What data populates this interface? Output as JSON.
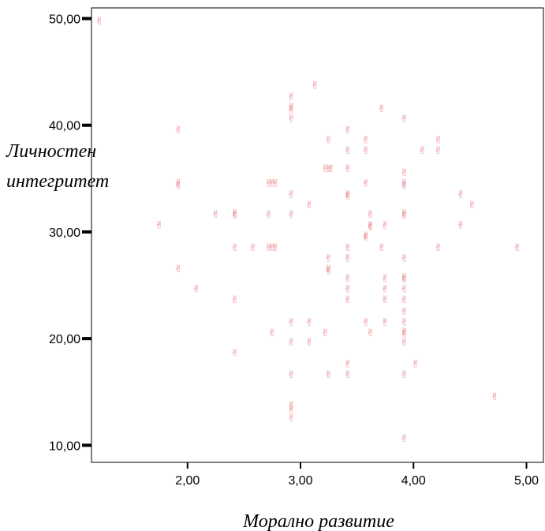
{
  "chart_data": {
    "type": "scatter",
    "title": "",
    "xlabel": "Морално развитие",
    "ylabel_line1": "Личностен",
    "ylabel_line2": "интегритет",
    "xlim": [
      1.15,
      5.15
    ],
    "ylim": [
      8.4,
      51.0
    ],
    "x_ticks": [
      2,
      3,
      4,
      5
    ],
    "x_tick_labels": [
      "2,00",
      "3,00",
      "4,00",
      "5,00"
    ],
    "y_ticks": [
      10,
      20,
      30,
      40,
      50
    ],
    "y_tick_labels": [
      "10,00",
      "20,00",
      "30,00",
      "40,00",
      "50,00"
    ],
    "grid": false,
    "marker_glyph": "✌",
    "marker_color": "#e8737a",
    "points": [
      [
        1.22,
        49.8
      ],
      [
        1.75,
        30.7
      ],
      [
        1.92,
        39.6
      ],
      [
        1.92,
        34.6
      ],
      [
        1.92,
        34.4
      ],
      [
        1.92,
        26.6
      ],
      [
        2.08,
        24.7
      ],
      [
        2.25,
        31.7
      ],
      [
        2.42,
        31.8
      ],
      [
        2.42,
        31.6
      ],
      [
        2.42,
        28.6
      ],
      [
        2.42,
        23.7
      ],
      [
        2.42,
        18.7
      ],
      [
        2.58,
        28.6
      ],
      [
        2.72,
        34.6
      ],
      [
        2.75,
        34.6
      ],
      [
        2.78,
        34.6
      ],
      [
        2.72,
        31.7
      ],
      [
        2.72,
        28.6
      ],
      [
        2.75,
        28.6
      ],
      [
        2.78,
        28.6
      ],
      [
        2.75,
        20.6
      ],
      [
        2.92,
        42.7
      ],
      [
        2.92,
        41.8
      ],
      [
        2.92,
        41.5
      ],
      [
        2.92,
        40.7
      ],
      [
        2.92,
        33.6
      ],
      [
        2.92,
        31.7
      ],
      [
        2.92,
        21.6
      ],
      [
        2.92,
        19.7
      ],
      [
        2.92,
        16.7
      ],
      [
        2.92,
        13.8
      ],
      [
        2.92,
        13.4
      ],
      [
        2.92,
        12.6
      ],
      [
        3.08,
        32.6
      ],
      [
        3.08,
        21.6
      ],
      [
        3.08,
        19.7
      ],
      [
        3.13,
        43.8
      ],
      [
        3.22,
        36.0
      ],
      [
        3.25,
        36.0
      ],
      [
        3.27,
        36.0
      ],
      [
        3.22,
        20.6
      ],
      [
        3.25,
        38.7
      ],
      [
        3.25,
        27.6
      ],
      [
        3.25,
        26.6
      ],
      [
        3.25,
        26.4
      ],
      [
        3.25,
        16.7
      ],
      [
        3.42,
        39.6
      ],
      [
        3.42,
        37.7
      ],
      [
        3.42,
        36.0
      ],
      [
        3.42,
        33.6
      ],
      [
        3.42,
        33.4
      ],
      [
        3.42,
        28.6
      ],
      [
        3.42,
        27.6
      ],
      [
        3.42,
        25.7
      ],
      [
        3.42,
        24.7
      ],
      [
        3.42,
        23.7
      ],
      [
        3.42,
        17.7
      ],
      [
        3.42,
        16.7
      ],
      [
        3.58,
        38.7
      ],
      [
        3.58,
        37.7
      ],
      [
        3.58,
        34.6
      ],
      [
        3.58,
        29.7
      ],
      [
        3.58,
        29.5
      ],
      [
        3.58,
        21.6
      ],
      [
        3.62,
        31.7
      ],
      [
        3.62,
        30.7
      ],
      [
        3.62,
        30.5
      ],
      [
        3.62,
        20.6
      ],
      [
        3.72,
        41.6
      ],
      [
        3.72,
        28.6
      ],
      [
        3.75,
        30.7
      ],
      [
        3.75,
        25.7
      ],
      [
        3.75,
        24.7
      ],
      [
        3.75,
        23.7
      ],
      [
        3.75,
        21.6
      ],
      [
        3.92,
        40.7
      ],
      [
        3.92,
        35.6
      ],
      [
        3.92,
        34.6
      ],
      [
        3.92,
        34.4
      ],
      [
        3.92,
        31.8
      ],
      [
        3.92,
        31.6
      ],
      [
        3.92,
        27.6
      ],
      [
        3.92,
        25.8
      ],
      [
        3.92,
        25.6
      ],
      [
        3.92,
        24.7
      ],
      [
        3.92,
        23.7
      ],
      [
        3.92,
        22.6
      ],
      [
        3.92,
        21.6
      ],
      [
        3.92,
        20.7
      ],
      [
        3.92,
        20.5
      ],
      [
        3.92,
        19.7
      ],
      [
        3.92,
        16.7
      ],
      [
        3.92,
        10.7
      ],
      [
        4.02,
        17.7
      ],
      [
        4.08,
        37.7
      ],
      [
        4.22,
        38.7
      ],
      [
        4.22,
        37.7
      ],
      [
        4.22,
        28.6
      ],
      [
        4.42,
        33.6
      ],
      [
        4.42,
        30.7
      ],
      [
        4.52,
        32.6
      ],
      [
        4.72,
        14.6
      ],
      [
        4.92,
        28.6
      ]
    ]
  }
}
